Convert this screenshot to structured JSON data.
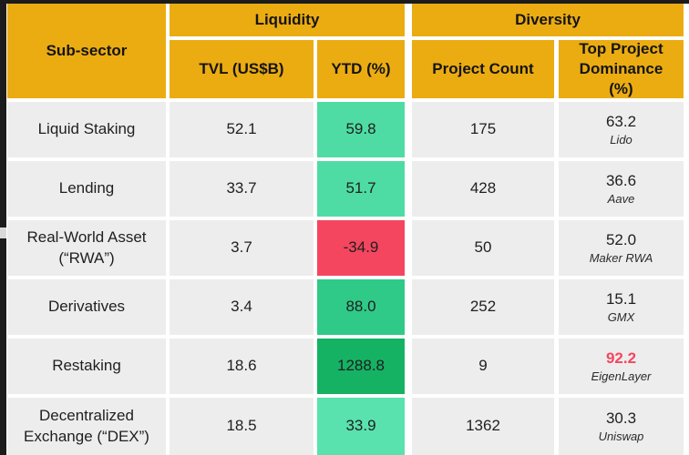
{
  "colors": {
    "gold": "#ebac12",
    "row_bg": "#ededed",
    "text": "#1f1f1f",
    "edge": "#1c1c1c",
    "green_strong": "#15b264",
    "green_mid": "#2fca88",
    "green_light": "#4edca4",
    "green_lightest": "#59e2ae",
    "red": "#f4465f"
  },
  "table": {
    "header": {
      "sub_sector": "Sub-sector",
      "liquidity": "Liquidity",
      "diversity": "Diversity",
      "tvl": "TVL (US$B)",
      "ytd": "YTD (%)",
      "project_count": "Project Count",
      "top_dominance": "Top Project Dominance (%)"
    },
    "rows": [
      {
        "name": "Liquid Staking",
        "tvl": "52.1",
        "ytd": "59.8",
        "ytd_bg": "#4edca4",
        "projects": "175",
        "dominance": "63.2",
        "dominance_color": "#1f1f1f",
        "dominance_weight": "400",
        "top_project": "Lido"
      },
      {
        "name": "Lending",
        "tvl": "33.7",
        "ytd": "51.7",
        "ytd_bg": "#4edca4",
        "projects": "428",
        "dominance": "36.6",
        "dominance_color": "#1f1f1f",
        "dominance_weight": "400",
        "top_project": "Aave"
      },
      {
        "name": "Real-World Asset (“RWA”)",
        "tvl": "3.7",
        "ytd": "-34.9",
        "ytd_bg": "#f4465f",
        "projects": "50",
        "dominance": "52.0",
        "dominance_color": "#1f1f1f",
        "dominance_weight": "400",
        "top_project": "Maker RWA"
      },
      {
        "name": "Derivatives",
        "tvl": "3.4",
        "ytd": "88.0",
        "ytd_bg": "#2fca88",
        "projects": "252",
        "dominance": "15.1",
        "dominance_color": "#1f1f1f",
        "dominance_weight": "400",
        "top_project": "GMX"
      },
      {
        "name": "Restaking",
        "tvl": "18.6",
        "ytd": "1288.8",
        "ytd_bg": "#15b264",
        "projects": "9",
        "dominance": "92.2",
        "dominance_color": "#f4465f",
        "dominance_weight": "700",
        "top_project": "EigenLayer"
      },
      {
        "name": "Decentralized Exchange (“DEX”)",
        "tvl": "18.5",
        "ytd": "33.9",
        "ytd_bg": "#59e2ae",
        "projects": "1362",
        "dominance": "30.3",
        "dominance_color": "#1f1f1f",
        "dominance_weight": "400",
        "top_project": "Uniswap"
      }
    ]
  },
  "chart_data": {
    "type": "table",
    "title": "",
    "row_header": "Sub-sector",
    "column_groups": [
      {
        "label": "Liquidity",
        "columns": [
          "TVL (US$B)",
          "YTD (%)"
        ]
      },
      {
        "label": "Diversity",
        "columns": [
          "Project Count",
          "Top Project Dominance (%)"
        ]
      }
    ],
    "rows": [
      {
        "sub_sector": "Liquid Staking",
        "tvl_usd_b": 52.1,
        "ytd_pct": 59.8,
        "project_count": 175,
        "top_project_dominance_pct": 63.2,
        "top_project": "Lido"
      },
      {
        "sub_sector": "Lending",
        "tvl_usd_b": 33.7,
        "ytd_pct": 51.7,
        "project_count": 428,
        "top_project_dominance_pct": 36.6,
        "top_project": "Aave"
      },
      {
        "sub_sector": "Real-World Asset (“RWA”)",
        "tvl_usd_b": 3.7,
        "ytd_pct": -34.9,
        "project_count": 50,
        "top_project_dominance_pct": 52.0,
        "top_project": "Maker RWA"
      },
      {
        "sub_sector": "Derivatives",
        "tvl_usd_b": 3.4,
        "ytd_pct": 88.0,
        "project_count": 252,
        "top_project_dominance_pct": 15.1,
        "top_project": "GMX"
      },
      {
        "sub_sector": "Restaking",
        "tvl_usd_b": 18.6,
        "ytd_pct": 1288.8,
        "project_count": 9,
        "top_project_dominance_pct": 92.2,
        "top_project": "EigenLayer"
      },
      {
        "sub_sector": "Decentralized Exchange (“DEX”)",
        "tvl_usd_b": 18.5,
        "ytd_pct": 33.9,
        "project_count": 1362,
        "top_project_dominance_pct": 30.3,
        "top_project": "Uniswap"
      }
    ],
    "notes": "YTD (%) cells are heatmap-shaded: green for positive (darker = larger), red for negative; 92.2 dominance highlighted red"
  }
}
